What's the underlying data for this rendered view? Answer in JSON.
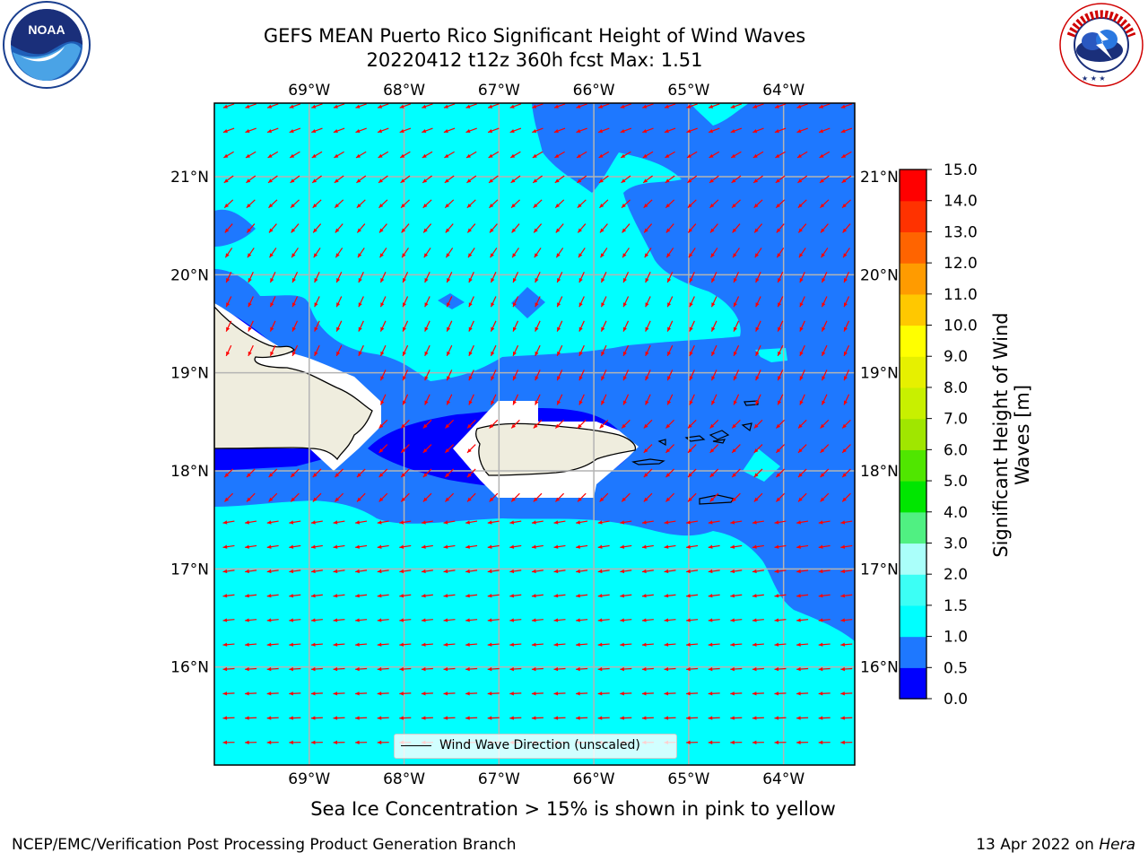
{
  "header": {
    "title_line1": "GEFS MEAN Puerto Rico Significant Height of Wind Waves",
    "title_line2": "20220412 t12z 360h fcst   Max: 1.51"
  },
  "logos": {
    "left": "noaa-logo",
    "right": "national-weather-service-logo"
  },
  "map": {
    "lon_labels": [
      "69°W",
      "68°W",
      "67°W",
      "66°W",
      "65°W",
      "64°W"
    ],
    "lat_labels": [
      "21°N",
      "20°N",
      "19°N",
      "18°N",
      "17°N",
      "16°N"
    ],
    "lon_values": [
      -69,
      -68,
      -67,
      -66,
      -65,
      -64
    ],
    "lat_values": [
      21,
      20,
      19,
      18,
      17,
      16
    ],
    "extent": {
      "lon_min": -70,
      "lon_max": -63.25,
      "lat_min": 15.0,
      "lat_max": 21.75
    },
    "arrow_color": "#ff0000",
    "land_color": "#efedde",
    "legend_label": "Wind Wave Direction (unscaled)"
  },
  "colorbar": {
    "title": "Significant Height of Wind Waves [m]",
    "ticks": [
      "0.0",
      "0.5",
      "1.0",
      "1.5",
      "2.0",
      "3.0",
      "4.0",
      "5.0",
      "6.0",
      "7.0",
      "8.0",
      "9.0",
      "10.0",
      "11.0",
      "12.0",
      "13.0",
      "14.0",
      "15.0"
    ],
    "colors": [
      "#0000ff",
      "#1e78ff",
      "#00ffff",
      "#3cfff5",
      "#aafffa",
      "#50f082",
      "#00e600",
      "#50e600",
      "#a0e600",
      "#c8f000",
      "#e6f000",
      "#ffff00",
      "#ffc800",
      "#ff9b00",
      "#ff6400",
      "#ff3200",
      "#ff0000"
    ]
  },
  "sea_ice_note": "Sea Ice Concentration > 15% is shown in pink to yellow",
  "footer": {
    "left": "NCEP/EMC/Verification Post Processing Product Generation Branch",
    "right_date": "13 Apr 2022 on",
    "right_host": "Hera"
  }
}
